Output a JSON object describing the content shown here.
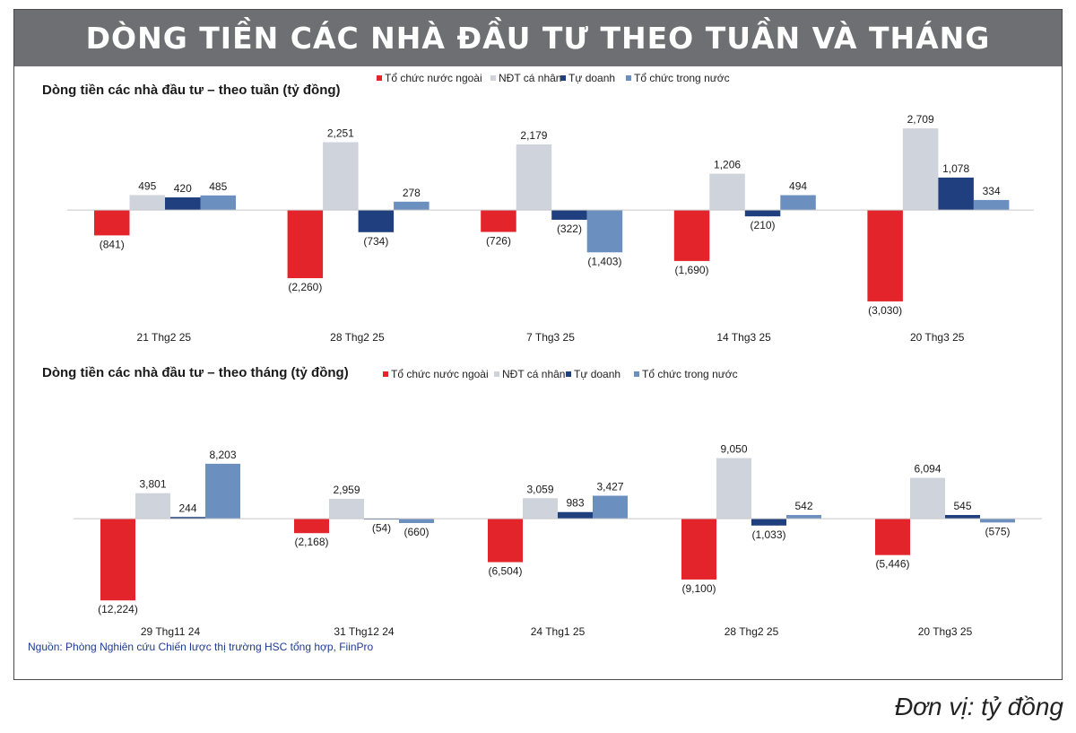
{
  "banner": {
    "title": "DÒNG TIỀN CÁC NHÀ ĐẦU TƯ THEO TUẦN VÀ THÁNG"
  },
  "footer": {
    "source": "Nguồn: Phòng Nghiên cứu Chiến lược thị trường HSC tổng hợp, FiinPro",
    "unit": "Đơn vị: tỷ đồng"
  },
  "colors": {
    "foreign": "#e3242b",
    "retail": "#cfd3dc",
    "proprietary": "#1f3f7f",
    "domestic_inst": "#6b8fbf"
  },
  "chart_data": [
    {
      "type": "bar",
      "title": "Dòng tiền các nhà đầu tư – theo tuần (tỷ đồng)",
      "legend_position": "top-right",
      "categories": [
        "21 Thg2 25",
        "28 Thg2 25",
        "7 Thg3 25",
        "14 Thg3 25",
        "20 Thg3 25"
      ],
      "series": [
        {
          "name": "Tổ chức nước ngoài",
          "values": [
            -841,
            -2260,
            -726,
            -1690,
            -3030
          ],
          "labels": [
            "(841)",
            "(2,260)",
            "(726)",
            "(1,690)",
            "(3,030)"
          ]
        },
        {
          "name": "NĐT cá nhân",
          "values": [
            495,
            2251,
            2179,
            1206,
            2709
          ],
          "labels": [
            "495",
            "2,251",
            "2,179",
            "1,206",
            "2,709"
          ]
        },
        {
          "name": "Tự doanh",
          "values": [
            420,
            -734,
            -322,
            -210,
            1078
          ],
          "labels": [
            "420",
            "(734)",
            "(322)",
            "(210)",
            "1,078"
          ]
        },
        {
          "name": "Tổ chức trong nước",
          "values": [
            485,
            278,
            -1403,
            494,
            334
          ],
          "labels": [
            "485",
            "278",
            "(1,403)",
            "494",
            "334"
          ]
        }
      ],
      "ylim": [
        -3300,
        2950
      ],
      "grid": false
    },
    {
      "type": "bar",
      "title": "Dòng tiền các nhà đầu tư – theo tháng (tỷ đồng)",
      "legend_position": "top-right",
      "categories": [
        "29 Thg11 24",
        "31 Thg12 24",
        "24 Thg1 25",
        "28 Thg2 25",
        "20 Thg3 25"
      ],
      "series": [
        {
          "name": "Tổ chức nước ngoài",
          "values": [
            -12224,
            -2168,
            -6504,
            -9100,
            -5446
          ],
          "labels": [
            "(12,224)",
            "(2,168)",
            "(6,504)",
            "(9,100)",
            "(5,446)"
          ]
        },
        {
          "name": "NĐT cá nhân",
          "values": [
            3801,
            2959,
            3059,
            9050,
            6094
          ],
          "labels": [
            "3,801",
            "2,959",
            "3,059",
            "9,050",
            "6,094"
          ]
        },
        {
          "name": "Tự doanh",
          "values": [
            244,
            -54,
            983,
            -1033,
            545
          ],
          "labels": [
            "244",
            "(54)",
            "983",
            "(1,033)",
            "545"
          ]
        },
        {
          "name": "Tổ chức trong nước",
          "values": [
            8203,
            -660,
            3427,
            542,
            -575
          ],
          "labels": [
            "8,203",
            "(660)",
            "3,427",
            "542",
            "(575)"
          ]
        }
      ],
      "ylim": [
        -13000,
        9800
      ],
      "grid": false
    }
  ]
}
